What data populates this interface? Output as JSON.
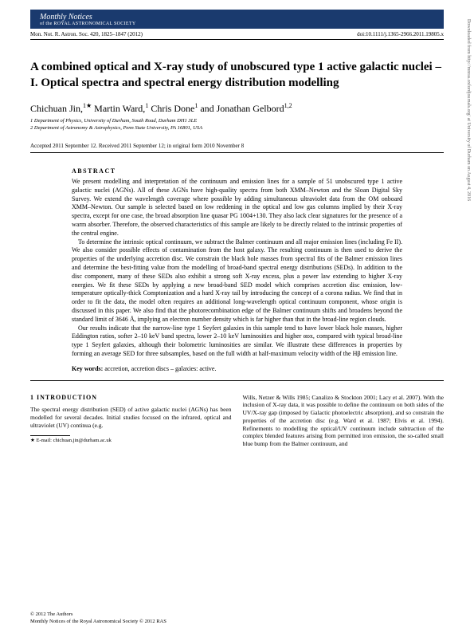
{
  "journal": {
    "name_italic": "Monthly Notices",
    "ras_line": "of the ROYAL ASTRONOMICAL SOCIETY",
    "citation": "Mon. Not. R. Astron. Soc. 420, 1825–1847 (2012)",
    "doi": "doi:10.1111/j.1365-2966.2011.19805.x"
  },
  "title": "A combined optical and X-ray study of unobscured type 1 active galactic nuclei – I. Optical spectra and spectral energy distribution modelling",
  "authors_html": "Chichuan Jin,<sup>1★</sup> Martin Ward,<sup>1</sup> Chris Done<sup>1</sup> and Jonathan Gelbord<sup>1,2</sup>",
  "affils": {
    "a1": "1 Department of Physics, University of Durham, South Road, Durham DH1 3LE",
    "a2": "2 Department of Astronomy & Astrophysics, Penn State University, PA 16801, USA"
  },
  "dates": "Accepted 2011 September 12. Received 2011 September 12; in original form 2010 November 8",
  "abstract": {
    "head": "ABSTRACT",
    "p1": "We present modelling and interpretation of the continuum and emission lines for a sample of 51 unobscured type 1 active galactic nuclei (AGNs). All of these AGNs have high-quality spectra from both XMM–Newton and the Sloan Digital Sky Survey. We extend the wavelength coverage where possible by adding simultaneous ultraviolet data from the OM onboard XMM–Newton. Our sample is selected based on low reddening in the optical and low gas columns implied by their X-ray spectra, except for one case, the broad absorption line quasar PG 1004+130. They also lack clear signatures for the presence of a warm absorber. Therefore, the observed characteristics of this sample are likely to be directly related to the intrinsic properties of the central engine.",
    "p2": "To determine the intrinsic optical continuum, we subtract the Balmer continuum and all major emission lines (including Fe II). We also consider possible effects of contamination from the host galaxy. The resulting continuum is then used to derive the properties of the underlying accretion disc. We constrain the black hole masses from spectral fits of the Balmer emission lines and determine the best-fitting value from the modelling of broad-band spectral energy distributions (SEDs). In addition to the disc component, many of these SEDs also exhibit a strong soft X-ray excess, plus a power law extending to higher X-ray energies. We fit these SEDs by applying a new broad-band SED model which comprises accretion disc emission, low-temperature optically-thick Comptonization and a hard X-ray tail by introducing the concept of a corona radius. We find that in order to fit the data, the model often requires an additional long-wavelength optical continuum component, whose origin is discussed in this paper. We also find that the photorecombination edge of the Balmer continuum shifts and broadens beyond the standard limit of 3646 Å, implying an electron number density which is far higher than that in the broad-line region clouds.",
    "p3": "Our results indicate that the narrow-line type 1 Seyfert galaxies in this sample tend to have lower black hole masses, higher Eddington ratios, softer 2–10 keV band spectra, lower 2–10 keV luminosities and higher αox, compared with typical broad-line type 1 Seyfert galaxies, although their bolometric luminosities are similar. We illustrate these differences in properties by forming an average SED for three subsamples, based on the full width at half-maximum velocity width of the Hβ emission line.",
    "keywords_label": "Key words:",
    "keywords": "accretion, accretion discs – galaxies: active."
  },
  "intro": {
    "head": "1  INTRODUCTION",
    "left": "The spectral energy distribution (SED) of active galactic nuclei (AGNs) has been modelled for several decades. Initial studies focused on the infrared, optical and ultraviolet (UV) continua (e.g.",
    "right": "Wills, Netzer & Wills 1985; Canalizo & Stockton 2001; Lacy et al. 2007). With the inclusion of X-ray data, it was possible to define the continuum on both sides of the UV/X-ray gap (imposed by Galactic photoelectric absorption), and so constrain the properties of the accretion disc (e.g. Ward et al. 1987; Elvis et al. 1994). Refinements to modelling the optical/UV continuum include subtraction of the complex blended features arising from permitted iron emission, the so-called small blue bump from the Balmer continuum, and"
  },
  "footnote": {
    "email": "★ E-mail: chichuan.jin@durham.ac.uk"
  },
  "copyright": {
    "l1": "© 2012 The Authors",
    "l2": "Monthly Notices of the Royal Astronomical Society © 2012 RAS"
  },
  "side": "Downloaded from http://mnras.oxfordjournals.org/ at University of Durham on August 4, 2016"
}
